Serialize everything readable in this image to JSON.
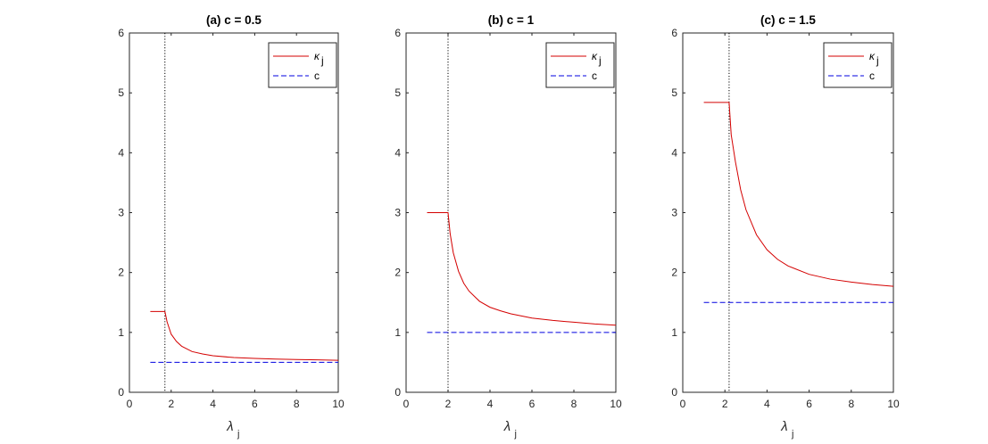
{
  "figure": {
    "background": "#ffffff"
  },
  "chart_data": [
    {
      "type": "line",
      "title": "(a) c = 0.5",
      "c": 0.5,
      "xlabel": "λ",
      "xlabel_sub": "j",
      "xlim": [
        0,
        10
      ],
      "ylim": [
        0,
        6
      ],
      "xticks": [
        0,
        2,
        4,
        6,
        8,
        10
      ],
      "yticks": [
        0,
        1,
        2,
        3,
        4,
        5,
        6
      ],
      "threshold_line": {
        "x": 1.7,
        "style": "dotted",
        "color": "#000000"
      },
      "legend": {
        "location": "top-right",
        "entries": [
          {
            "label": "κ",
            "sub": "j",
            "color": "#d40000",
            "style": "solid"
          },
          {
            "label": "c",
            "sub": "",
            "color": "#0000e0",
            "style": "dashed"
          }
        ]
      },
      "series": [
        {
          "name": "κj",
          "color": "#d40000",
          "style": "solid",
          "x": [
            1,
            1.7,
            1.8,
            2.0,
            2.25,
            2.5,
            3,
            3.5,
            4,
            5,
            6,
            7,
            8,
            9,
            10
          ],
          "y": [
            1.35,
            1.35,
            1.18,
            0.97,
            0.85,
            0.77,
            0.68,
            0.64,
            0.61,
            0.58,
            0.565,
            0.555,
            0.548,
            0.542,
            0.535
          ]
        },
        {
          "name": "c",
          "color": "#0000e0",
          "style": "dashed",
          "x": [
            1,
            10
          ],
          "y": [
            0.5,
            0.5
          ]
        }
      ]
    },
    {
      "type": "line",
      "title": "(b) c = 1",
      "c": 1,
      "xlabel": "λ",
      "xlabel_sub": "j",
      "xlim": [
        0,
        10
      ],
      "ylim": [
        0,
        6
      ],
      "xticks": [
        0,
        2,
        4,
        6,
        8,
        10
      ],
      "yticks": [
        0,
        1,
        2,
        3,
        4,
        5,
        6
      ],
      "threshold_line": {
        "x": 2.0,
        "style": "dotted",
        "color": "#000000"
      },
      "legend": {
        "location": "top-right",
        "entries": [
          {
            "label": "κ",
            "sub": "j",
            "color": "#d40000",
            "style": "solid"
          },
          {
            "label": "c",
            "sub": "",
            "color": "#0000e0",
            "style": "dashed"
          }
        ]
      },
      "series": [
        {
          "name": "κj",
          "color": "#d40000",
          "style": "solid",
          "x": [
            1,
            2.0,
            2.1,
            2.25,
            2.5,
            2.75,
            3,
            3.5,
            4,
            4.5,
            5,
            6,
            7,
            8,
            9,
            10
          ],
          "y": [
            3.0,
            3.0,
            2.65,
            2.33,
            2.02,
            1.82,
            1.69,
            1.52,
            1.42,
            1.36,
            1.31,
            1.24,
            1.2,
            1.17,
            1.14,
            1.12
          ]
        },
        {
          "name": "c",
          "color": "#0000e0",
          "style": "dashed",
          "x": [
            1,
            10
          ],
          "y": [
            1,
            1
          ]
        }
      ]
    },
    {
      "type": "line",
      "title": "(c) c = 1.5",
      "c": 1.5,
      "xlabel": "λ",
      "xlabel_sub": "j",
      "xlim": [
        0,
        10
      ],
      "ylim": [
        0,
        6
      ],
      "xticks": [
        0,
        2,
        4,
        6,
        8,
        10
      ],
      "yticks": [
        0,
        1,
        2,
        3,
        4,
        5,
        6
      ],
      "threshold_line": {
        "x": 2.2,
        "style": "dotted",
        "color": "#000000"
      },
      "legend": {
        "location": "top-right",
        "entries": [
          {
            "label": "κ",
            "sub": "j",
            "color": "#d40000",
            "style": "solid"
          },
          {
            "label": "c",
            "sub": "",
            "color": "#0000e0",
            "style": "dashed"
          }
        ]
      },
      "series": [
        {
          "name": "κj",
          "color": "#d40000",
          "style": "solid",
          "x": [
            1,
            2.2,
            2.3,
            2.5,
            2.75,
            3,
            3.5,
            4,
            4.5,
            5,
            6,
            7,
            8,
            9,
            10
          ],
          "y": [
            4.84,
            4.84,
            4.3,
            3.85,
            3.38,
            3.05,
            2.63,
            2.38,
            2.22,
            2.11,
            1.97,
            1.89,
            1.84,
            1.8,
            1.77
          ]
        },
        {
          "name": "c",
          "color": "#0000e0",
          "style": "dashed",
          "x": [
            1,
            10
          ],
          "y": [
            1.5,
            1.5
          ]
        }
      ]
    }
  ]
}
